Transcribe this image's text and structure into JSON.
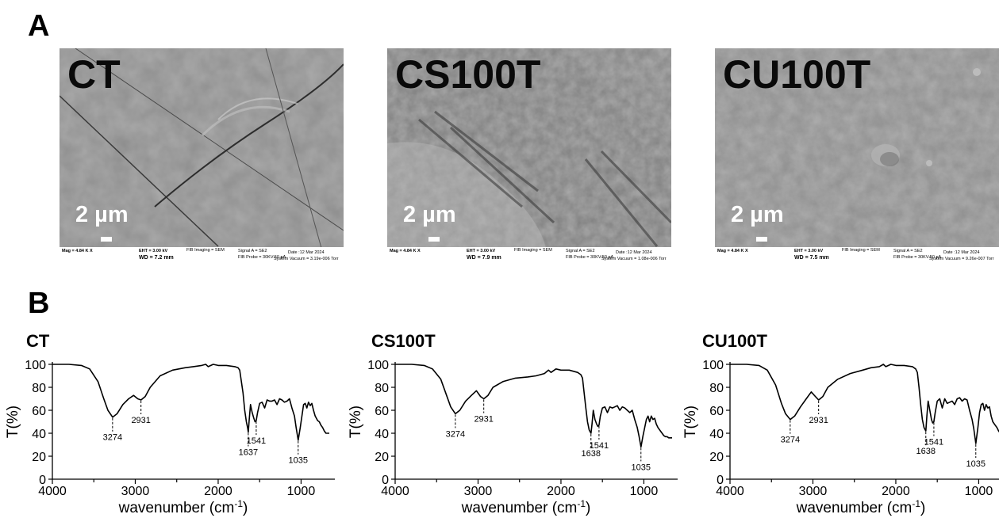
{
  "panel_a": {
    "letter": "A",
    "images": [
      {
        "label": "CT",
        "scale": "2 µm",
        "info": {
          "mag": "Mag =    4.84 K X",
          "eht": "EHT =  3.00 kV",
          "wd": "WD = 7.2 mm",
          "fib": "FIB Imaging = SEM",
          "signal": "Signal A = SE2",
          "probe": "FIB Probe = 30KV:50 pA",
          "date": "Date :12 Mar 2024",
          "vac": "System Vacuum = 3.19e-006 Torr"
        }
      },
      {
        "label": "CS100T",
        "scale": "2 µm",
        "info": {
          "mag": "Mag =    4.84 K X",
          "eht": "EHT =  3.00 kV",
          "wd": "WD = 7.9 mm",
          "fib": "FIB Imaging = SEM",
          "signal": "Signal A = SE2",
          "probe": "FIB Probe = 30KV:50 pA",
          "date": "Date :12 Mar 2024",
          "vac": "System Vacuum = 1.08e-006 Torr"
        }
      },
      {
        "label": "CU100T",
        "scale": "2 µm",
        "info": {
          "mag": "Mag =    4.84 K X",
          "eht": "EHT =  3.00 kV",
          "wd": "WD = 7.5 mm",
          "fib": "FIB Imaging = SEM",
          "signal": "Signal A = SE2",
          "probe": "FIB Probe = 30KV:50 pA",
          "date": "Date :12 Mar 2024",
          "vac": "System Vacuum = 9.26e-007 Torr"
        }
      }
    ]
  },
  "panel_b": {
    "letter": "B",
    "xlabel": "wavenumber (cm",
    "xlabel_sup": "-1",
    "xlabel_end": ")",
    "ylabel": "T(%)"
  },
  "chart_data": [
    {
      "type": "line",
      "title": "CT",
      "xlabel": "wavenumber (cm-1)",
      "ylabel": "T(%)",
      "xlim": [
        4000,
        650
      ],
      "ylim": [
        0,
        100
      ],
      "x_ticks": [
        4000,
        3000,
        2000,
        1000
      ],
      "y_ticks": [
        0,
        20,
        40,
        60,
        80,
        100
      ],
      "annotations": [
        {
          "label": "3274",
          "x": 3274,
          "y": 54
        },
        {
          "label": "2931",
          "x": 2931,
          "y": 69
        },
        {
          "label": "1637",
          "x": 1637,
          "y": 41
        },
        {
          "label": "1541",
          "x": 1541,
          "y": 51
        },
        {
          "label": "1035",
          "x": 1035,
          "y": 34
        }
      ],
      "series": [
        {
          "x": [
            4000,
            3800,
            3650,
            3550,
            3450,
            3380,
            3330,
            3274,
            3220,
            3150,
            3080,
            3020,
            2970,
            2931,
            2880,
            2820,
            2700,
            2550,
            2400,
            2300,
            2200,
            2150,
            2120,
            2060,
            2000,
            1900,
            1800,
            1760,
            1740,
            1720,
            1700,
            1680,
            1660,
            1645,
            1637,
            1625,
            1610,
            1590,
            1570,
            1555,
            1541,
            1525,
            1500,
            1470,
            1440,
            1410,
            1380,
            1350,
            1320,
            1290,
            1260,
            1230,
            1200,
            1170,
            1140,
            1110,
            1080,
            1060,
            1035,
            1010,
            990,
            970,
            950,
            930,
            910,
            890,
            870,
            850,
            830,
            800,
            780,
            760,
            740,
            720,
            700,
            680,
            660
          ],
          "y": [
            100,
            100,
            99,
            96,
            85,
            70,
            60,
            54,
            57,
            65,
            70,
            73,
            70,
            69,
            72,
            80,
            90,
            95,
            97,
            98,
            99,
            100,
            98,
            100,
            99,
            99,
            98,
            97,
            95,
            85,
            75,
            60,
            50,
            45,
            41,
            52,
            65,
            58,
            53,
            50,
            51,
            58,
            66,
            67,
            62,
            69,
            68,
            68,
            69,
            65,
            70,
            69,
            67,
            68,
            70,
            62,
            55,
            45,
            34,
            45,
            55,
            65,
            66,
            62,
            67,
            64,
            66,
            60,
            55,
            51,
            50,
            47,
            45,
            42,
            40,
            40,
            40
          ]
        }
      ]
    },
    {
      "type": "line",
      "title": "CS100T",
      "xlabel": "wavenumber (cm-1)",
      "ylabel": "T(%)",
      "xlim": [
        4000,
        650
      ],
      "ylim": [
        0,
        100
      ],
      "x_ticks": [
        4000,
        3000,
        2000,
        1000
      ],
      "y_ticks": [
        0,
        20,
        40,
        60,
        80,
        100
      ],
      "annotations": [
        {
          "label": "3274",
          "x": 3274,
          "y": 57
        },
        {
          "label": "2931",
          "x": 2931,
          "y": 70
        },
        {
          "label": "1638",
          "x": 1638,
          "y": 40
        },
        {
          "label": "1541",
          "x": 1541,
          "y": 47
        },
        {
          "label": "1035",
          "x": 1035,
          "y": 28
        }
      ],
      "series": [
        {
          "x": [
            4000,
            3800,
            3650,
            3550,
            3450,
            3380,
            3330,
            3274,
            3220,
            3150,
            3080,
            3020,
            2970,
            2931,
            2880,
            2820,
            2700,
            2550,
            2400,
            2300,
            2200,
            2150,
            2120,
            2060,
            2000,
            1900,
            1800,
            1760,
            1740,
            1720,
            1700,
            1680,
            1660,
            1645,
            1638,
            1625,
            1610,
            1590,
            1570,
            1555,
            1541,
            1525,
            1500,
            1470,
            1440,
            1410,
            1380,
            1350,
            1320,
            1290,
            1260,
            1230,
            1200,
            1170,
            1140,
            1110,
            1080,
            1060,
            1035,
            1010,
            990,
            970,
            950,
            930,
            910,
            890,
            870,
            850,
            830,
            800,
            780,
            760,
            740,
            720,
            700,
            680,
            660
          ],
          "y": [
            100,
            100,
            99,
            96,
            87,
            73,
            63,
            57,
            60,
            68,
            73,
            77,
            72,
            70,
            73,
            80,
            85,
            88,
            89,
            90,
            92,
            95,
            93,
            96,
            95,
            95,
            93,
            91,
            88,
            75,
            62,
            50,
            43,
            41,
            40,
            48,
            60,
            52,
            48,
            46,
            47,
            55,
            62,
            63,
            58,
            63,
            62,
            63,
            64,
            60,
            63,
            62,
            60,
            58,
            60,
            52,
            45,
            38,
            28,
            38,
            45,
            52,
            55,
            50,
            55,
            52,
            53,
            48,
            45,
            42,
            40,
            38,
            37,
            37,
            36,
            36,
            36
          ]
        }
      ]
    },
    {
      "type": "line",
      "title": "CU100T",
      "xlabel": "wavenumber (cm-1)",
      "ylabel": "T(%)",
      "xlim": [
        4000,
        650
      ],
      "ylim": [
        0,
        100
      ],
      "x_ticks": [
        4000,
        3000,
        2000,
        1000
      ],
      "y_ticks": [
        0,
        20,
        40,
        60,
        80,
        100
      ],
      "annotations": [
        {
          "label": "3274",
          "x": 3274,
          "y": 52
        },
        {
          "label": "2931",
          "x": 2931,
          "y": 69
        },
        {
          "label": "1638",
          "x": 1638,
          "y": 42
        },
        {
          "label": "1541",
          "x": 1541,
          "y": 50
        },
        {
          "label": "1035",
          "x": 1035,
          "y": 31
        }
      ],
      "series": [
        {
          "x": [
            4000,
            3800,
            3650,
            3550,
            3450,
            3380,
            3330,
            3274,
            3220,
            3150,
            3080,
            3020,
            2970,
            2931,
            2880,
            2820,
            2700,
            2550,
            2400,
            2300,
            2200,
            2150,
            2120,
            2060,
            2000,
            1900,
            1800,
            1760,
            1740,
            1720,
            1700,
            1680,
            1660,
            1645,
            1638,
            1625,
            1610,
            1590,
            1570,
            1555,
            1541,
            1525,
            1500,
            1470,
            1440,
            1410,
            1380,
            1350,
            1320,
            1290,
            1260,
            1230,
            1200,
            1170,
            1140,
            1110,
            1080,
            1060,
            1035,
            1010,
            990,
            970,
            950,
            930,
            910,
            890,
            870,
            850,
            830,
            800,
            780,
            760,
            740,
            720,
            700,
            680,
            660
          ],
          "y": [
            100,
            100,
            99,
            95,
            82,
            66,
            57,
            52,
            55,
            63,
            70,
            76,
            72,
            69,
            72,
            80,
            87,
            92,
            95,
            97,
            98,
            100,
            98,
            100,
            99,
            99,
            98,
            96,
            93,
            80,
            65,
            52,
            45,
            43,
            42,
            55,
            68,
            60,
            52,
            49,
            50,
            58,
            68,
            70,
            62,
            70,
            66,
            67,
            68,
            65,
            70,
            71,
            68,
            70,
            69,
            60,
            52,
            44,
            31,
            45,
            58,
            65,
            66,
            60,
            65,
            62,
            63,
            55,
            50,
            47,
            45,
            42,
            40,
            38,
            36,
            35,
            34
          ]
        }
      ]
    }
  ]
}
